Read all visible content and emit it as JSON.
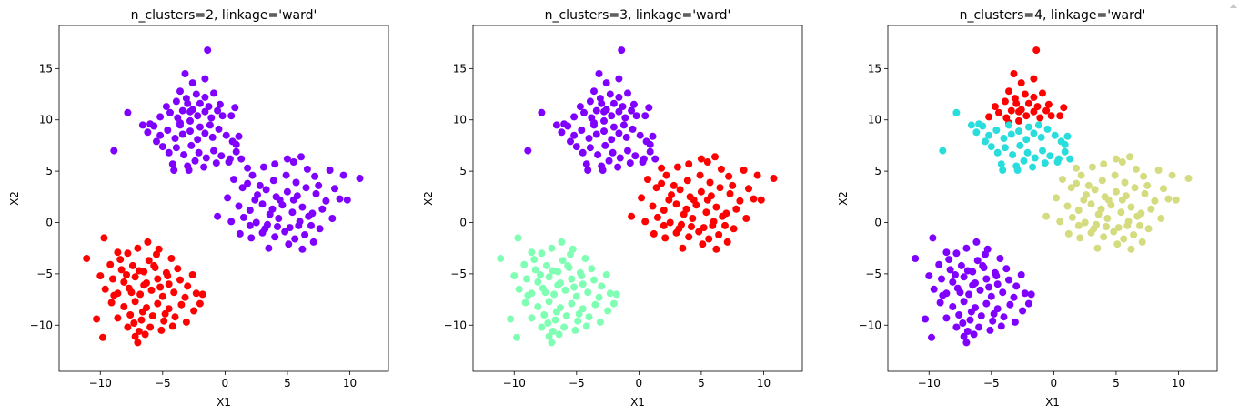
{
  "chart_data": [
    {
      "type": "scatter",
      "title": "n_clusters=2, linkage='ward'",
      "xlabel": "X1",
      "ylabel": "X2",
      "xlim": [
        -13.3,
        13.1
      ],
      "ylim": [
        -14.5,
        19.2
      ],
      "xticks": [
        -10,
        -5,
        0,
        5,
        10
      ],
      "yticks": [
        -10,
        -5,
        0,
        5,
        10,
        15
      ],
      "grid": false,
      "legend": "none",
      "cluster_colors": [
        "#8000ff",
        "#ff0000"
      ],
      "assignment": {
        "top": 0,
        "upper": 0,
        "right": 0,
        "left": 1
      }
    },
    {
      "type": "scatter",
      "title": "n_clusters=3, linkage='ward'",
      "xlabel": "X1",
      "ylabel": "X2",
      "xlim": [
        -13.3,
        13.1
      ],
      "ylim": [
        -14.5,
        19.2
      ],
      "xticks": [
        -10,
        -5,
        0,
        5,
        10
      ],
      "yticks": [
        -10,
        -5,
        0,
        5,
        10,
        15
      ],
      "grid": false,
      "legend": "none",
      "cluster_colors": [
        "#8000ff",
        "#80ffb4",
        "#ff0000"
      ],
      "assignment": {
        "top": 0,
        "upper": 0,
        "right": 2,
        "left": 1
      }
    },
    {
      "type": "scatter",
      "title": "n_clusters=4, linkage='ward'",
      "xlabel": "X1",
      "ylabel": "X2",
      "xlim": [
        -13.3,
        13.1
      ],
      "ylim": [
        -14.5,
        19.2
      ],
      "xticks": [
        -10,
        -5,
        0,
        5,
        10
      ],
      "yticks": [
        -10,
        -5,
        0,
        5,
        10,
        15
      ],
      "grid": false,
      "legend": "none",
      "cluster_colors": [
        "#8000ff",
        "#2adddd",
        "#d4dc7f",
        "#ff0000"
      ],
      "assignment": {
        "top": 3,
        "upper": 1,
        "right": 2,
        "left": 0
      }
    }
  ],
  "groups": {
    "top": [
      [
        -3.8,
        10.2
      ],
      [
        -3.4,
        10.9
      ],
      [
        -2.6,
        11.0
      ],
      [
        -2.2,
        10.4
      ],
      [
        -1.6,
        10.8
      ],
      [
        -1.1,
        10.2
      ],
      [
        -0.6,
        10.9
      ],
      [
        -0.4,
        11.5
      ],
      [
        -1.6,
        12.2
      ],
      [
        -2.3,
        12.5
      ],
      [
        -3.1,
        12.1
      ],
      [
        -3.9,
        11.8
      ],
      [
        -2.6,
        13.6
      ],
      [
        -1.6,
        14.0
      ],
      [
        -3.2,
        14.5
      ],
      [
        -1.4,
        16.8
      ],
      [
        -2.8,
        10.8
      ],
      [
        -3.0,
        11.6
      ],
      [
        -0.9,
        12.6
      ],
      [
        -4.4,
        10.7
      ],
      [
        -5.2,
        10.3
      ],
      [
        -3.6,
        12.8
      ],
      [
        -2.0,
        11.6
      ],
      [
        -0.2,
        10.4
      ],
      [
        -4.7,
        11.3
      ],
      [
        -1.3,
        11.3
      ],
      [
        0.5,
        10.4
      ],
      [
        0.8,
        11.2
      ],
      [
        -2.8,
        9.9
      ],
      [
        -3.6,
        9.7
      ]
    ],
    "upper": [
      [
        -8.9,
        7.0
      ],
      [
        -7.8,
        10.7
      ],
      [
        -6.6,
        9.5
      ],
      [
        -6.2,
        8.8
      ],
      [
        -5.7,
        9.4
      ],
      [
        -5.2,
        8.5
      ],
      [
        -4.6,
        9.0
      ],
      [
        -4.0,
        8.2
      ],
      [
        -3.4,
        8.6
      ],
      [
        -2.8,
        8.9
      ],
      [
        -2.2,
        8.1
      ],
      [
        -1.6,
        8.7
      ],
      [
        -1.0,
        8.3
      ],
      [
        -0.5,
        9.1
      ],
      [
        0.1,
        8.5
      ],
      [
        0.6,
        7.9
      ],
      [
        1.1,
        8.4
      ],
      [
        -5.0,
        7.4
      ],
      [
        -4.5,
        6.8
      ],
      [
        -3.9,
        7.3
      ],
      [
        -3.3,
        6.6
      ],
      [
        -2.7,
        7.5
      ],
      [
        -2.1,
        6.8
      ],
      [
        -1.5,
        6.3
      ],
      [
        -0.9,
        7.0
      ],
      [
        -0.3,
        6.5
      ],
      [
        0.4,
        6.2
      ],
      [
        0.9,
        6.9
      ],
      [
        -4.2,
        5.7
      ],
      [
        -3.0,
        5.5
      ],
      [
        -2.4,
        6.0
      ],
      [
        -1.7,
        5.4
      ],
      [
        -3.6,
        9.5
      ],
      [
        -4.1,
        5.1
      ],
      [
        -0.7,
        5.8
      ],
      [
        -5.5,
        7.9
      ],
      [
        -6.0,
        9.6
      ],
      [
        0.3,
        5.9
      ],
      [
        -2.0,
        9.3
      ],
      [
        -1.2,
        9.5
      ],
      [
        1.3,
        6.2
      ],
      [
        -2.9,
        5.1
      ],
      [
        0.9,
        7.6
      ]
    ],
    "right": [
      [
        1.8,
        5.3
      ],
      [
        2.2,
        4.6
      ],
      [
        3.1,
        5.4
      ],
      [
        4.0,
        5.7
      ],
      [
        5.5,
        5.9
      ],
      [
        6.1,
        6.4
      ],
      [
        5.0,
        6.2
      ],
      [
        6.6,
        5.2
      ],
      [
        7.2,
        4.5
      ],
      [
        8.4,
        5.1
      ],
      [
        9.5,
        4.6
      ],
      [
        10.8,
        4.3
      ],
      [
        0.7,
        4.2
      ],
      [
        1.4,
        3.4
      ],
      [
        2.6,
        2.7
      ],
      [
        3.3,
        3.2
      ],
      [
        4.1,
        2.5
      ],
      [
        5.0,
        3.0
      ],
      [
        5.8,
        2.6
      ],
      [
        6.5,
        3.4
      ],
      [
        7.3,
        2.8
      ],
      [
        8.1,
        2.1
      ],
      [
        9.2,
        2.3
      ],
      [
        9.8,
        2.2
      ],
      [
        0.2,
        2.4
      ],
      [
        1.1,
        1.6
      ],
      [
        2.0,
        1.2
      ],
      [
        3.0,
        1.8
      ],
      [
        3.8,
        1.3
      ],
      [
        4.6,
        1.7
      ],
      [
        5.4,
        1.0
      ],
      [
        6.2,
        1.5
      ],
      [
        7.0,
        0.9
      ],
      [
        7.8,
        1.3
      ],
      [
        8.6,
        0.4
      ],
      [
        -0.6,
        0.6
      ],
      [
        0.5,
        0.1
      ],
      [
        1.5,
        0.5
      ],
      [
        2.5,
        0.0
      ],
      [
        3.4,
        -0.2
      ],
      [
        4.3,
        0.4
      ],
      [
        5.2,
        -0.5
      ],
      [
        6.0,
        0.1
      ],
      [
        6.9,
        -0.3
      ],
      [
        7.6,
        -0.6
      ],
      [
        1.2,
        -1.1
      ],
      [
        2.1,
        -1.5
      ],
      [
        3.0,
        -1.0
      ],
      [
        4.0,
        -1.4
      ],
      [
        4.8,
        -0.9
      ],
      [
        5.6,
        -1.6
      ],
      [
        6.4,
        -1.2
      ],
      [
        7.1,
        -1.9
      ],
      [
        3.5,
        -2.5
      ],
      [
        5.1,
        -2.1
      ],
      [
        6.2,
        -2.6
      ],
      [
        2.4,
        2.2
      ],
      [
        3.9,
        4.1
      ],
      [
        5.7,
        3.9
      ],
      [
        4.9,
        4.6
      ],
      [
        1.8,
        3.8
      ],
      [
        7.5,
        3.6
      ],
      [
        8.8,
        3.3
      ],
      [
        3.2,
        -0.6
      ],
      [
        4.4,
        2.2
      ],
      [
        6.7,
        0.6
      ],
      [
        2.8,
        3.6
      ],
      [
        5.5,
        2.2
      ],
      [
        4.2,
        -0.4
      ],
      [
        3.6,
        0.8
      ],
      [
        5.9,
        -0.3
      ],
      [
        2.0,
        -0.3
      ]
    ],
    "left": [
      [
        -11.1,
        -3.5
      ],
      [
        -9.7,
        -1.5
      ],
      [
        -8.6,
        -2.9
      ],
      [
        -7.8,
        -3.0
      ],
      [
        -7.0,
        -2.5
      ],
      [
        -6.2,
        -1.9
      ],
      [
        -5.3,
        -2.6
      ],
      [
        -4.3,
        -3.5
      ],
      [
        -9.2,
        -4.1
      ],
      [
        -8.3,
        -4.6
      ],
      [
        -7.4,
        -4.2
      ],
      [
        -6.5,
        -4.8
      ],
      [
        -5.6,
        -4.4
      ],
      [
        -4.7,
        -4.9
      ],
      [
        -3.8,
        -4.5
      ],
      [
        -10.0,
        -5.2
      ],
      [
        -9.0,
        -5.5
      ],
      [
        -8.1,
        -5.8
      ],
      [
        -7.2,
        -5.3
      ],
      [
        -6.3,
        -5.9
      ],
      [
        -5.4,
        -5.5
      ],
      [
        -4.5,
        -6.0
      ],
      [
        -3.6,
        -5.6
      ],
      [
        -2.6,
        -5.1
      ],
      [
        -9.6,
        -6.5
      ],
      [
        -8.6,
        -6.9
      ],
      [
        -7.7,
        -6.4
      ],
      [
        -6.8,
        -7.0
      ],
      [
        -5.9,
        -6.6
      ],
      [
        -5.0,
        -7.2
      ],
      [
        -4.1,
        -6.8
      ],
      [
        -3.2,
        -7.3
      ],
      [
        -2.3,
        -6.9
      ],
      [
        -1.8,
        -7.0
      ],
      [
        -9.1,
        -7.8
      ],
      [
        -8.1,
        -8.2
      ],
      [
        -7.2,
        -7.7
      ],
      [
        -6.3,
        -8.3
      ],
      [
        -5.4,
        -7.9
      ],
      [
        -4.5,
        -8.4
      ],
      [
        -3.5,
        -8.0
      ],
      [
        -2.5,
        -8.6
      ],
      [
        -2.0,
        -7.9
      ],
      [
        -8.6,
        -9.3
      ],
      [
        -7.6,
        -9.0
      ],
      [
        -6.7,
        -9.5
      ],
      [
        -5.8,
        -9.1
      ],
      [
        -4.9,
        -9.6
      ],
      [
        -4.0,
        -9.2
      ],
      [
        -3.1,
        -9.7
      ],
      [
        -10.3,
        -9.4
      ],
      [
        -7.8,
        -10.2
      ],
      [
        -6.9,
        -10.6
      ],
      [
        -6.0,
        -10.2
      ],
      [
        -5.1,
        -10.5
      ],
      [
        -4.2,
        -10.1
      ],
      [
        -7.2,
        -11.1
      ],
      [
        -6.4,
        -10.9
      ],
      [
        -9.8,
        -11.2
      ],
      [
        -7.0,
        -11.7
      ],
      [
        -6.5,
        -6.1
      ],
      [
        -7.9,
        -5.1
      ],
      [
        -6.1,
        -3.7
      ],
      [
        -5.2,
        -6.3
      ],
      [
        -8.9,
        -7.1
      ],
      [
        -6.6,
        -8.7
      ],
      [
        -4.6,
        -5.2
      ],
      [
        -7.5,
        -6.8
      ],
      [
        -5.7,
        -4.2
      ],
      [
        -8.4,
        -3.6
      ],
      [
        -3.0,
        -6.2
      ],
      [
        -6.9,
        -4.7
      ],
      [
        -4.8,
        -8.9
      ],
      [
        -7.3,
        -9.8
      ],
      [
        -5.5,
        -3.1
      ]
    ]
  }
}
